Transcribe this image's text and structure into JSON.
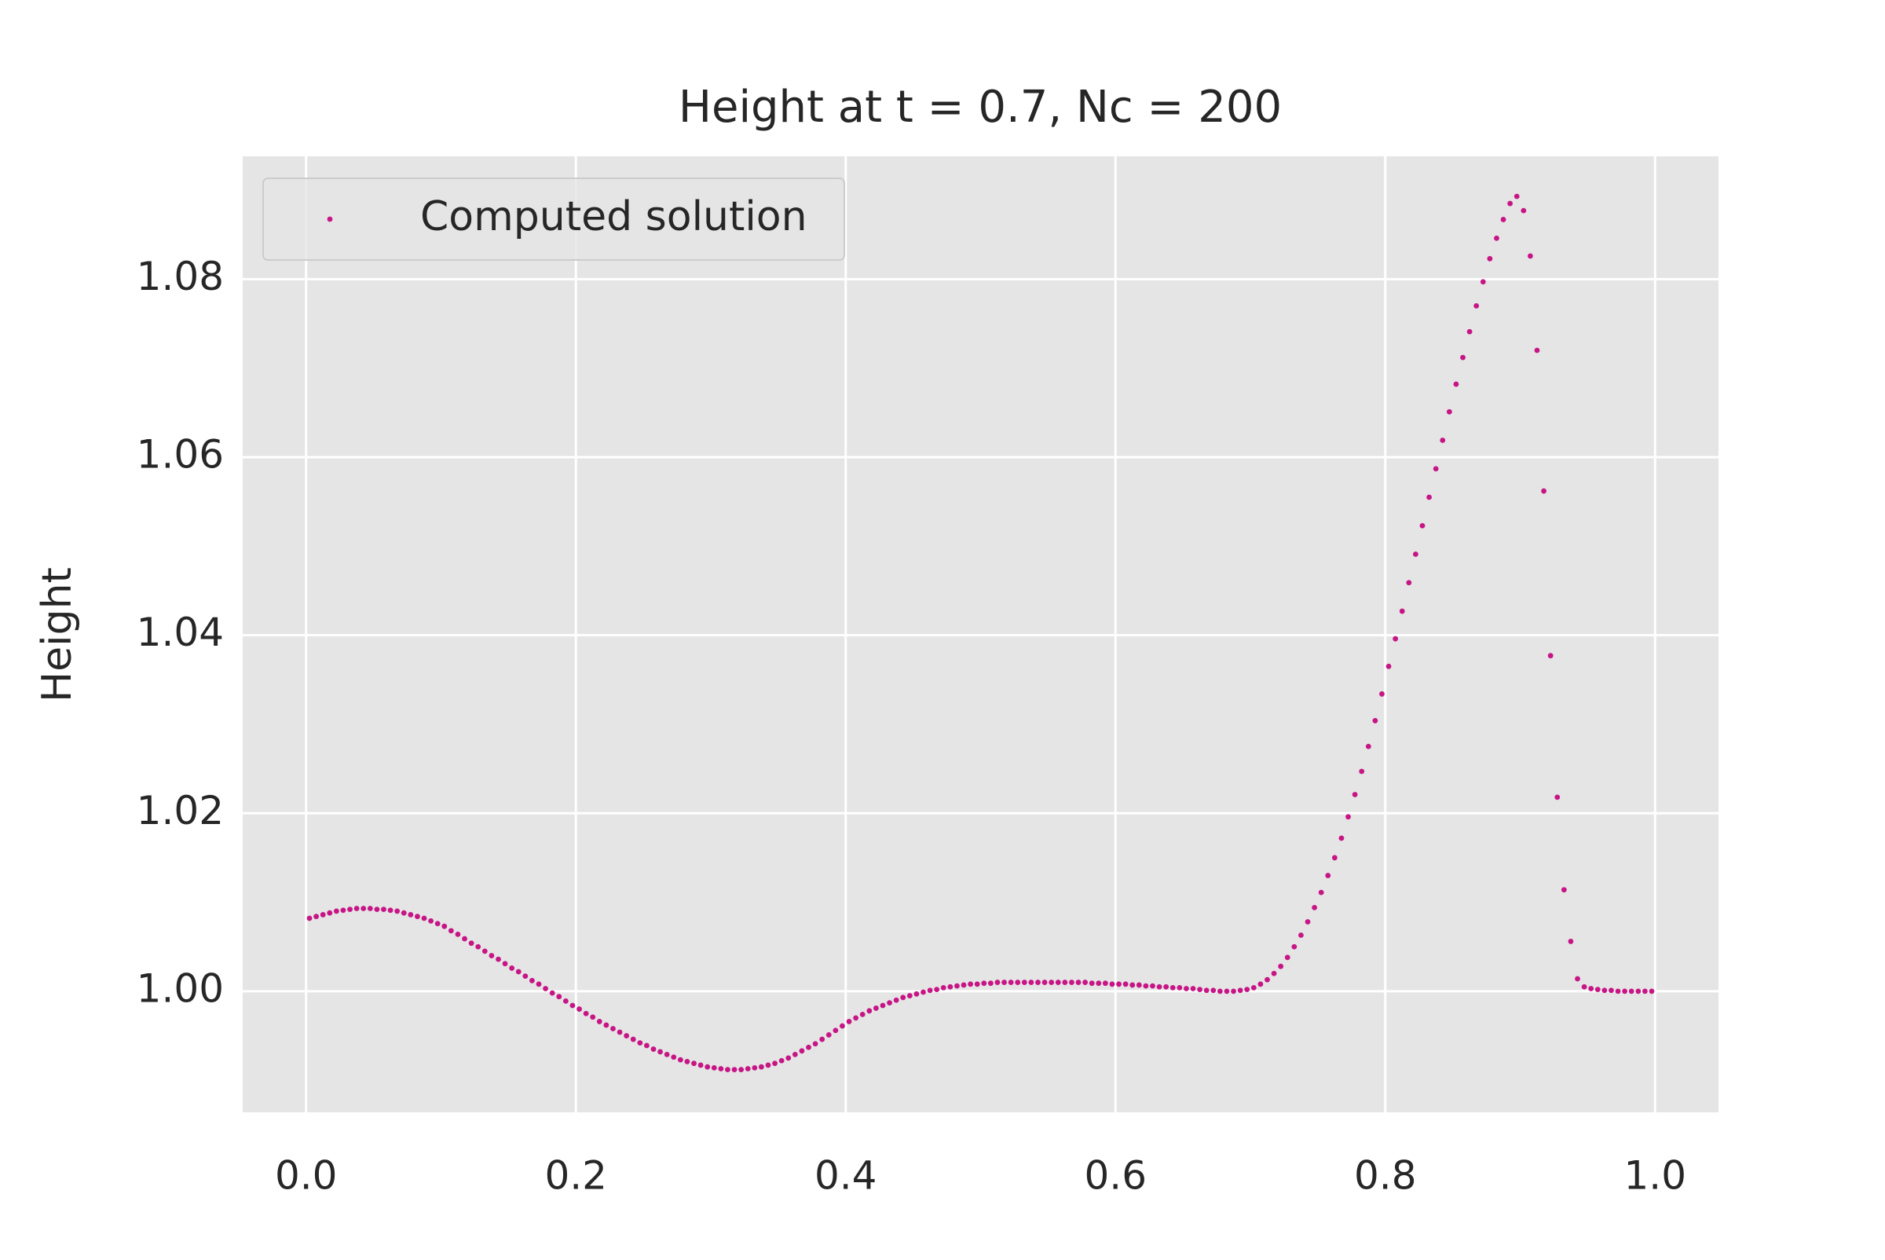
{
  "chart_data": {
    "type": "scatter",
    "title": "Height at t = 0.7, Nc = 200",
    "ylabel": "Height",
    "series": [
      {
        "name": "Computed solution",
        "color": "#c71585",
        "x": [
          0.0025,
          0.0075,
          0.0125,
          0.0175,
          0.0225,
          0.0275,
          0.0325,
          0.0375,
          0.0425,
          0.0475,
          0.0525,
          0.0575,
          0.0625,
          0.0675,
          0.0725,
          0.0775,
          0.0825,
          0.0875,
          0.0925,
          0.0975,
          0.1025,
          0.1075,
          0.1125,
          0.1175,
          0.1225,
          0.1275,
          0.1325,
          0.1375,
          0.1425,
          0.1475,
          0.1525,
          0.1575,
          0.1625,
          0.1675,
          0.1725,
          0.1775,
          0.1825,
          0.1875,
          0.1925,
          0.1975,
          0.2025,
          0.2075,
          0.2125,
          0.2175,
          0.2225,
          0.2275,
          0.2325,
          0.2375,
          0.2425,
          0.2475,
          0.2525,
          0.2575,
          0.2625,
          0.2675,
          0.2725,
          0.2775,
          0.2825,
          0.2875,
          0.2925,
          0.2975,
          0.3025,
          0.3075,
          0.3125,
          0.3175,
          0.3225,
          0.3275,
          0.3325,
          0.3375,
          0.3425,
          0.3475,
          0.3525,
          0.3575,
          0.3625,
          0.3675,
          0.3725,
          0.3775,
          0.3825,
          0.3875,
          0.3925,
          0.3975,
          0.4025,
          0.4075,
          0.4125,
          0.4175,
          0.4225,
          0.4275,
          0.4325,
          0.4375,
          0.4425,
          0.4475,
          0.4525,
          0.4575,
          0.4625,
          0.4675,
          0.4725,
          0.4775,
          0.4825,
          0.4875,
          0.4925,
          0.4975,
          0.5025,
          0.5075,
          0.5125,
          0.5175,
          0.5225,
          0.5275,
          0.5325,
          0.5375,
          0.5425,
          0.5475,
          0.5525,
          0.5575,
          0.5625,
          0.5675,
          0.5725,
          0.5775,
          0.5825,
          0.5875,
          0.5925,
          0.5975,
          0.6025,
          0.6075,
          0.6125,
          0.6175,
          0.6225,
          0.6275,
          0.6325,
          0.6375,
          0.6425,
          0.6475,
          0.6525,
          0.6575,
          0.6625,
          0.6675,
          0.6725,
          0.6775,
          0.6825,
          0.6875,
          0.6925,
          0.6975,
          0.7025,
          0.7075,
          0.7125,
          0.7175,
          0.7225,
          0.7275,
          0.7325,
          0.7375,
          0.7425,
          0.7475,
          0.7525,
          0.7575,
          0.7625,
          0.7675,
          0.7725,
          0.7775,
          0.7825,
          0.7875,
          0.7925,
          0.7975,
          0.8025,
          0.8075,
          0.8125,
          0.8175,
          0.8225,
          0.8275,
          0.8325,
          0.8375,
          0.8425,
          0.8475,
          0.8525,
          0.8575,
          0.8625,
          0.8675,
          0.8725,
          0.8775,
          0.8825,
          0.8875,
          0.8925,
          0.8975,
          0.9025,
          0.9075,
          0.9125,
          0.9175,
          0.9225,
          0.9275,
          0.9325,
          0.9375,
          0.9425,
          0.9475,
          0.9525,
          0.9575,
          0.9625,
          0.9675,
          0.9725,
          0.9775,
          0.9825,
          0.9875,
          0.9925,
          0.9975
        ],
        "values": [
          1.0082,
          1.0084,
          1.0086,
          1.0088,
          1.009,
          1.0091,
          1.0092,
          1.0093,
          1.0093,
          1.0093,
          1.0092,
          1.0092,
          1.0091,
          1.009,
          1.0088,
          1.0086,
          1.0084,
          1.0082,
          1.0079,
          1.0076,
          1.0073,
          1.0068,
          1.0064,
          1.0059,
          1.0054,
          1.005,
          1.0045,
          1.004,
          1.0036,
          1.0031,
          1.0026,
          1.0022,
          1.0017,
          1.0012,
          1.0008,
          1.0003,
          0.9998,
          0.9994,
          0.9989,
          0.9984,
          0.998,
          0.9975,
          0.9971,
          0.9966,
          0.9962,
          0.9958,
          0.9954,
          0.995,
          0.9946,
          0.9942,
          0.9939,
          0.9935,
          0.9932,
          0.9929,
          0.9926,
          0.9923,
          0.9921,
          0.9919,
          0.9917,
          0.9915,
          0.9914,
          0.9913,
          0.9912,
          0.9912,
          0.9912,
          0.9913,
          0.9914,
          0.9915,
          0.9917,
          0.9919,
          0.9922,
          0.9925,
          0.9929,
          0.9933,
          0.9937,
          0.9941,
          0.9946,
          0.9951,
          0.9956,
          0.9961,
          0.9966,
          0.997,
          0.9974,
          0.9978,
          0.9981,
          0.9984,
          0.9987,
          0.999,
          0.9993,
          0.9995,
          0.9997,
          0.9999,
          1.0001,
          1.0002,
          1.0004,
          1.0005,
          1.0006,
          1.0007,
          1.0008,
          1.0008,
          1.0009,
          1.0009,
          1.001,
          1.001,
          1.001,
          1.001,
          1.001,
          1.001,
          1.001,
          1.001,
          1.001,
          1.001,
          1.001,
          1.001,
          1.001,
          1.001,
          1.0009,
          1.0009,
          1.0009,
          1.0008,
          1.0008,
          1.0008,
          1.0007,
          1.0007,
          1.0006,
          1.0006,
          1.0005,
          1.0005,
          1.0004,
          1.0004,
          1.0003,
          1.0003,
          1.0002,
          1.0001,
          1.0001,
          1.0,
          1.0,
          1.0,
          1.0001,
          1.0002,
          1.0004,
          1.0008,
          1.0013,
          1.002,
          1.0028,
          1.0038,
          1.005,
          1.0063,
          1.0078,
          1.0094,
          1.0111,
          1.013,
          1.015,
          1.0172,
          1.0196,
          1.0221,
          1.0247,
          1.0275,
          1.0304,
          1.0334,
          1.0365,
          1.0396,
          1.0427,
          1.0459,
          1.0491,
          1.0523,
          1.0555,
          1.0587,
          1.0619,
          1.0651,
          1.0682,
          1.0712,
          1.0741,
          1.077,
          1.0797,
          1.0823,
          1.0846,
          1.0867,
          1.0885,
          1.0893,
          1.0877,
          1.0826,
          1.072,
          1.0562,
          1.0377,
          1.0218,
          1.0114,
          1.0056,
          1.0014,
          1.0005,
          1.0003,
          1.0002,
          1.0001,
          1.0001,
          1.0,
          1.0,
          1.0,
          1.0,
          1.0,
          1.0
        ]
      }
    ],
    "xlim": [
      -0.047,
      1.047
    ],
    "ylim": [
      0.9864,
      1.0938
    ],
    "xticks": [
      {
        "value": 0,
        "label": "0.0"
      },
      0.2,
      0.4,
      0.6,
      0.8,
      {
        "value": 1,
        "label": "1.0"
      }
    ],
    "yticks": [
      {
        "value": 1,
        "label": "1.00"
      },
      1.02,
      1.04,
      1.06,
      1.08
    ],
    "grid": true,
    "legend": "upper left"
  }
}
